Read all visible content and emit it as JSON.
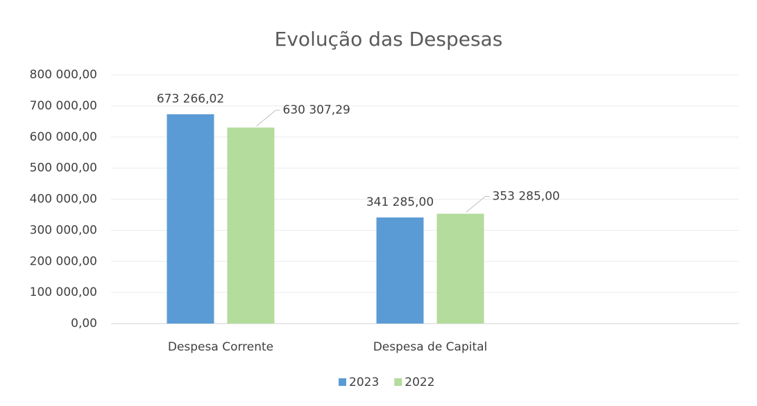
{
  "chart_data": {
    "type": "bar",
    "title": "Evolução das Despesas",
    "categories": [
      "Despesa Corrente",
      "Despesa de Capital"
    ],
    "series": [
      {
        "name": "2023",
        "color": "#5b9bd5",
        "values": [
          673266.02,
          341285.0
        ],
        "value_labels": [
          "673 266,02",
          "341 285,00"
        ]
      },
      {
        "name": "2022",
        "color": "#b4dc9c",
        "values": [
          630307.29,
          353285.0
        ],
        "value_labels": [
          "630 307,29",
          "353 285,00"
        ]
      }
    ],
    "ylim": [
      0,
      800000
    ],
    "yticks": [
      {
        "value": 0,
        "label": "0,00"
      },
      {
        "value": 100000,
        "label": "100 000,00"
      },
      {
        "value": 200000,
        "label": "200 000,00"
      },
      {
        "value": 300000,
        "label": "300 000,00"
      },
      {
        "value": 400000,
        "label": "400 000,00"
      },
      {
        "value": 500000,
        "label": "500 000,00"
      },
      {
        "value": 600000,
        "label": "600 000,00"
      },
      {
        "value": 700000,
        "label": "700 000,00"
      },
      {
        "value": 800000,
        "label": "800 000,00"
      }
    ],
    "grid": true,
    "legend": "bottom"
  }
}
